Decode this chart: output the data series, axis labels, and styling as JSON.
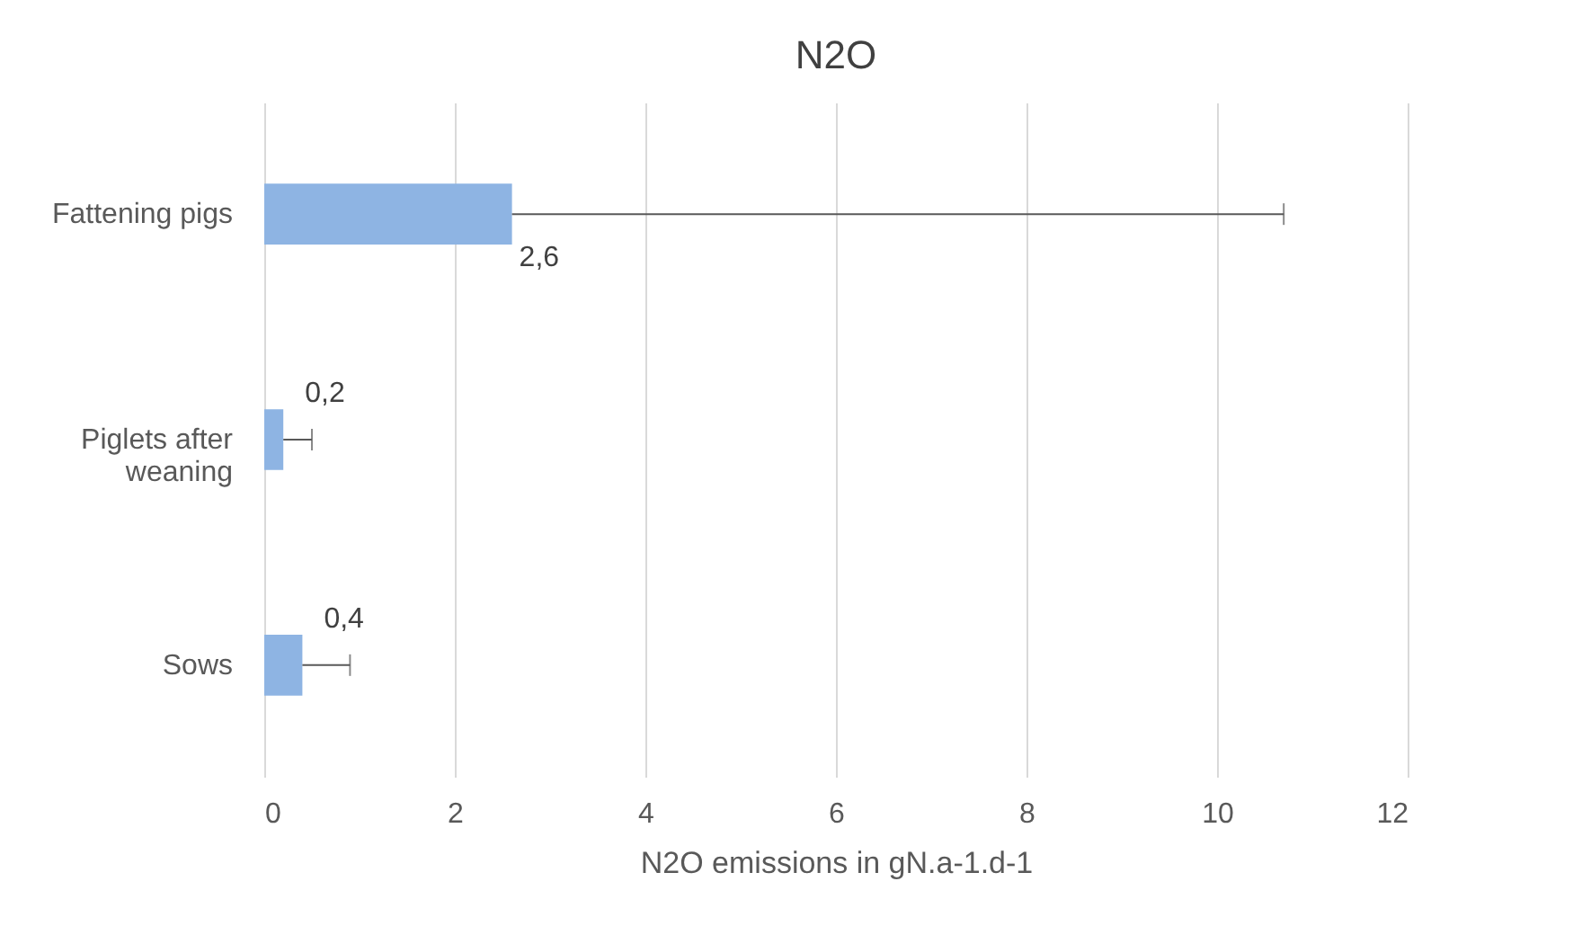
{
  "chart_data": {
    "type": "bar",
    "title": "N2O",
    "xlabel": "N2O emissions in gN.a-1.d-1",
    "orientation": "horizontal",
    "categories": [
      "Fattening pigs",
      "Piglets after weaning",
      "Sows"
    ],
    "values": [
      2.6,
      0.2,
      0.4
    ],
    "errors": [
      [
        2.6,
        10.7
      ],
      [
        0.2,
        0.5
      ],
      [
        0.4,
        0.9
      ]
    ],
    "value_labels": [
      "2,6",
      "0,2",
      "0,4"
    ],
    "color": "#8eb4e3",
    "xlim": [
      0,
      12
    ],
    "xticks": [
      0,
      2,
      4,
      6,
      8,
      10,
      12
    ],
    "grid": "x"
  }
}
